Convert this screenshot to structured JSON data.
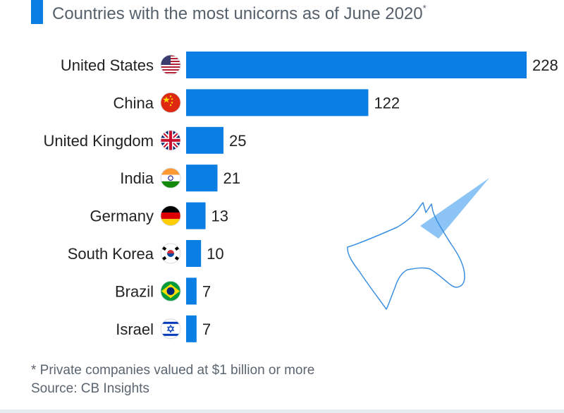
{
  "title": "Countries with the most unicorns as of June 2020",
  "title_marker": "*",
  "footnote": "* Private companies valued at $1 billion or more",
  "source": "Source: CB Insights",
  "colors": {
    "bar": "#0b7ee3",
    "accent": "#0b7ee3",
    "unicorn_line": "#3a8fe0",
    "horn": "#8cc4f5"
  },
  "chart_data": {
    "type": "bar",
    "orientation": "horizontal",
    "title": "Countries with the most unicorns as of June 2020",
    "categories": [
      "United States",
      "China",
      "United Kingdom",
      "India",
      "Germany",
      "South Korea",
      "Brazil",
      "Israel"
    ],
    "flags": [
      "us-flag-icon",
      "china-flag-icon",
      "uk-flag-icon",
      "india-flag-icon",
      "germany-flag-icon",
      "south-korea-flag-icon",
      "brazil-flag-icon",
      "israel-flag-icon"
    ],
    "values": [
      228,
      122,
      25,
      21,
      13,
      10,
      7,
      7
    ],
    "data_labels": [
      "228",
      "122",
      "25",
      "21",
      "13",
      "10",
      "7",
      "7"
    ],
    "xlim": [
      0,
      228
    ],
    "grid": false,
    "legend": "none"
  }
}
